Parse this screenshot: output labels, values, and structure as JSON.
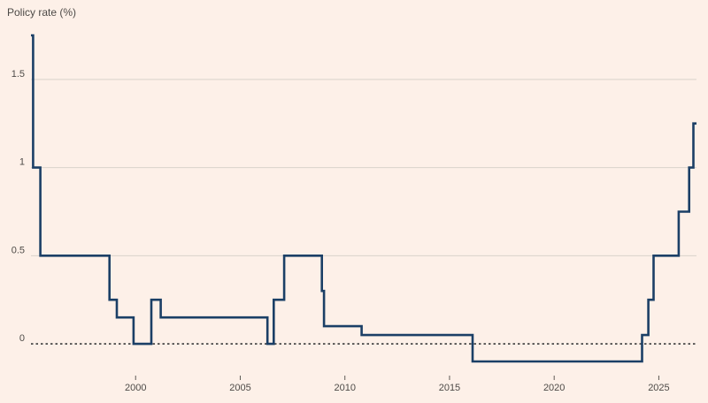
{
  "chart_data": {
    "type": "line",
    "line_style": "step",
    "title": "",
    "ylabel": "Policy rate (%)",
    "xlabel": "",
    "xlim": [
      1995.0,
      2026.8
    ],
    "ylim": [
      -0.18,
      1.8
    ],
    "yticks": [
      0,
      0.5,
      1,
      1.5
    ],
    "ytick_labels": [
      "0",
      "0.5",
      "1",
      "1.5"
    ],
    "xticks": [
      2000,
      2005,
      2010,
      2015,
      2020,
      2025
    ],
    "xtick_labels": [
      "2000",
      "2005",
      "2010",
      "2015",
      "2020",
      "2025"
    ],
    "grid": true,
    "zero_line": "dotted",
    "colors": {
      "background": "#fdf0e8",
      "line": "#1b3f66",
      "grid": "#d9d2ca",
      "zero_line": "#3a3a3a"
    },
    "series": [
      {
        "name": "",
        "x": [
          1995.0,
          1995.1,
          1995.45,
          1998.75,
          1999.1,
          1999.9,
          2000.75,
          2001.2,
          2006.3,
          2006.6,
          2007.1,
          2008.9,
          2009.0,
          2010.8,
          2016.1,
          2024.2,
          2024.5,
          2024.75,
          2025.1,
          2025.95,
          2026.45,
          2026.65
        ],
        "y": [
          1.75,
          1.0,
          0.5,
          0.25,
          0.15,
          0.0,
          0.25,
          0.15,
          0.0,
          0.25,
          0.5,
          0.3,
          0.1,
          0.05,
          -0.1,
          0.05,
          0.25,
          0.5,
          0.5,
          0.75,
          1.0,
          1.25
        ]
      }
    ]
  }
}
